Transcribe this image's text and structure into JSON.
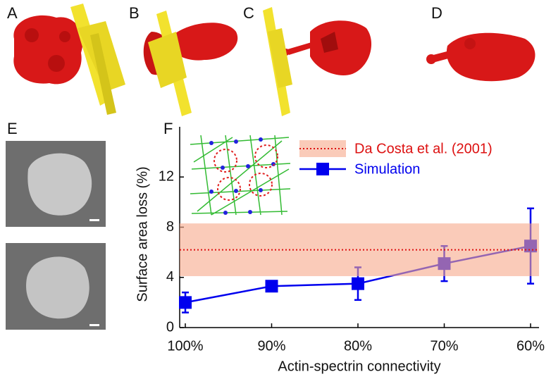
{
  "panel_labels": [
    "A",
    "B",
    "C",
    "D",
    "E",
    "F"
  ],
  "chart_data": {
    "type": "line",
    "xlabel": "Actin-spectrin connectivity",
    "ylabel": "Surface area loss (%)",
    "categories": [
      "100%",
      "90%",
      "80%",
      "70%",
      "60%"
    ],
    "series": [
      {
        "name": "Simulation",
        "color": "#0000ee",
        "values": [
          2.0,
          3.3,
          3.5,
          5.1,
          6.5
        ],
        "errors": [
          0.8,
          0.4,
          1.3,
          1.4,
          3.0
        ]
      }
    ],
    "reference": {
      "name": "Da Costa et al. (2001)",
      "color": "#dd1111",
      "fill": "#f6a98a",
      "value": 6.2,
      "range": [
        4.1,
        8.3
      ]
    },
    "ylim": [
      0,
      16
    ],
    "yticks": [
      0,
      4,
      8,
      12
    ]
  }
}
